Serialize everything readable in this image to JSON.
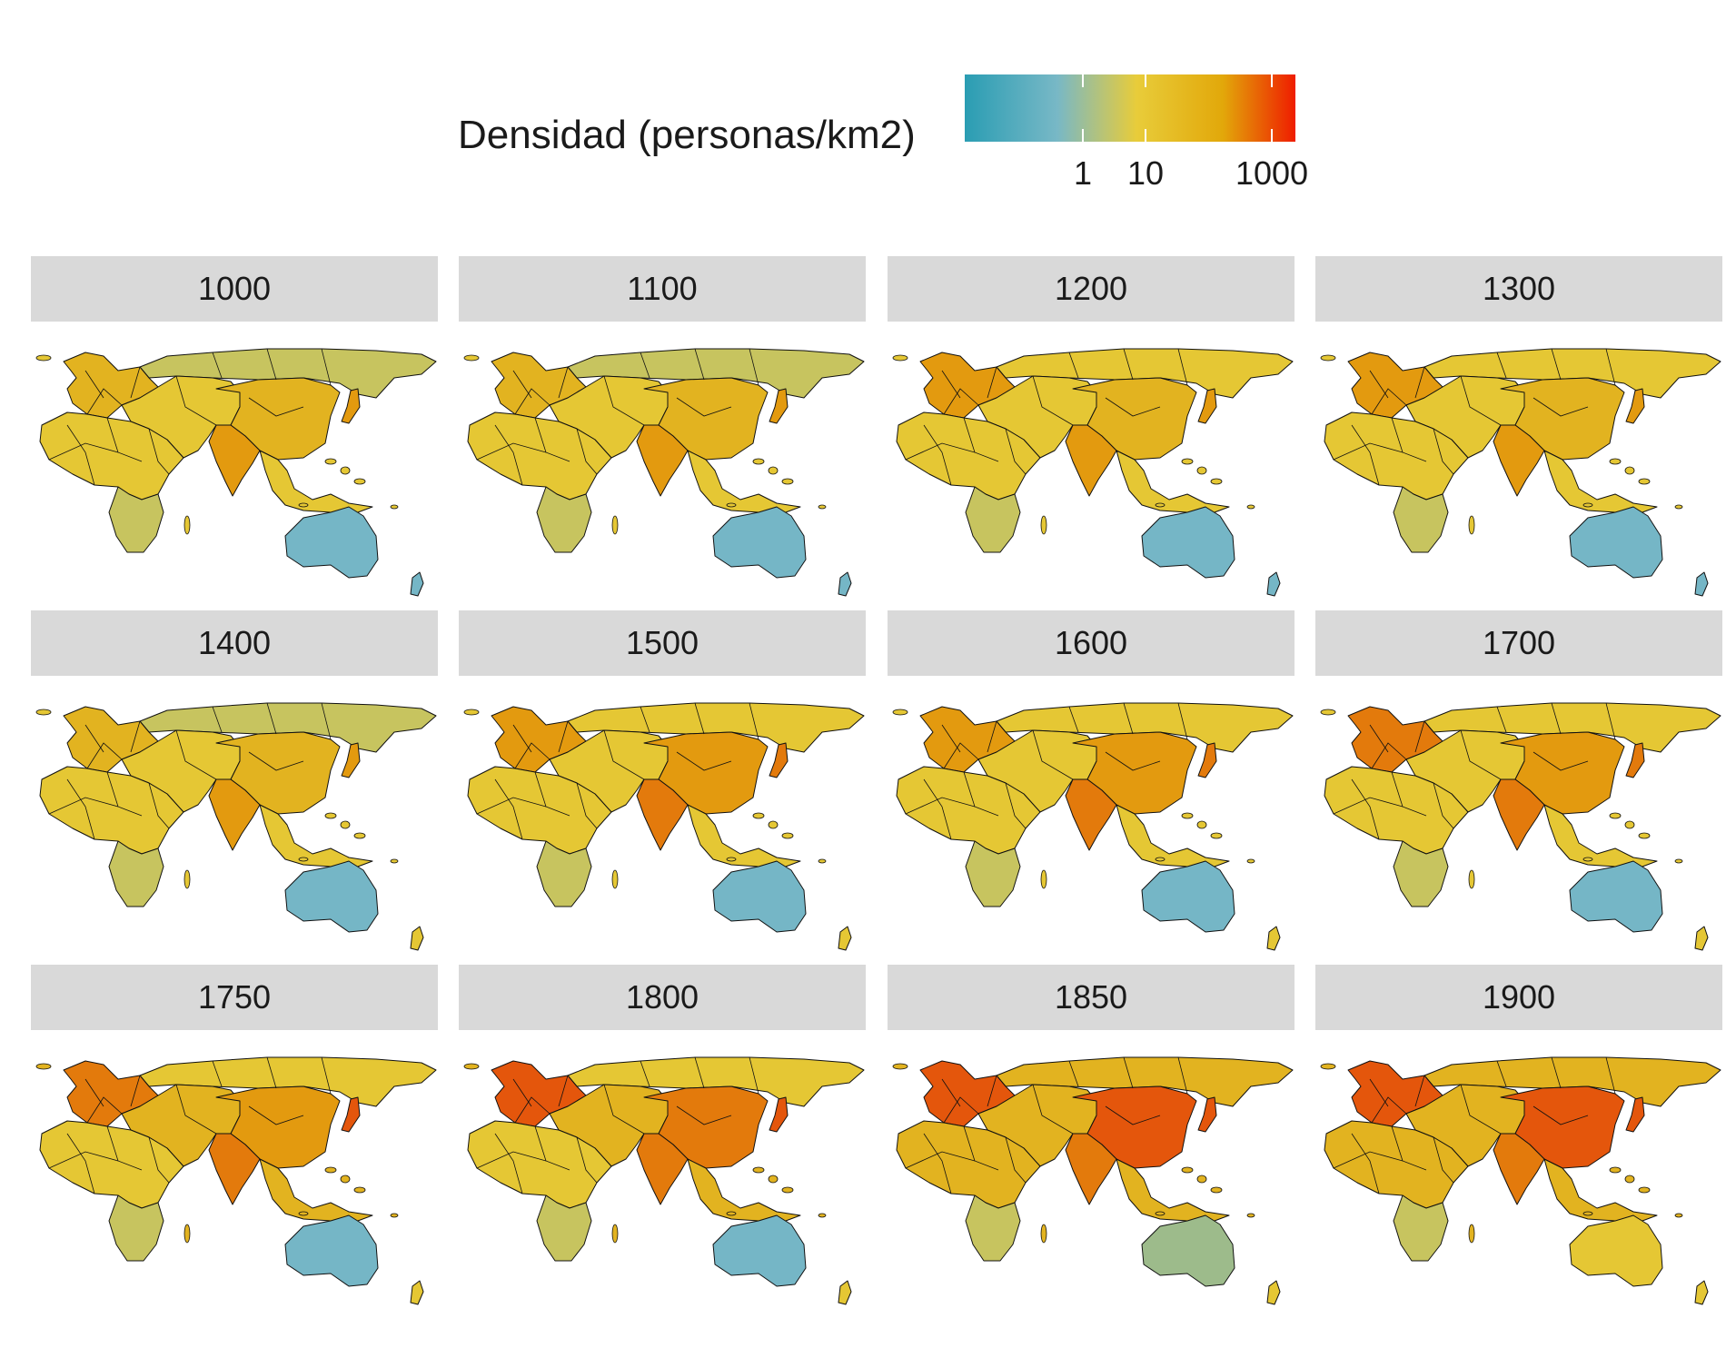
{
  "legend": {
    "title": "Densidad (personas/km2)",
    "scale": "log",
    "ticks": [
      "1",
      "10",
      "1000"
    ],
    "colors": [
      "#2a9db3",
      "#78b8c6",
      "#e8cc3a",
      "#e2a80a",
      "#ef1d00"
    ]
  },
  "map_data": {
    "type": "choropleth-facet",
    "variable": "Densidad (personas/km2)",
    "palette": {
      "blue": "#75b6c6",
      "sage": "#9dbb8b",
      "olive": "#c7c45f",
      "yellow": "#e5c734",
      "gold": "#e2b320",
      "orange": "#e39a0f",
      "darkorange": "#e37a0c",
      "red": "#e4560c"
    },
    "panels": [
      {
        "year": "1000",
        "colors": {
          "russia": "olive",
          "mid": "yellow",
          "europe": "gold",
          "africa": "yellow",
          "safrica": "olive",
          "china": "gold",
          "india": "orange",
          "japan": "orange",
          "seasia": "yellow",
          "australia": "blue",
          "nz": "blue"
        }
      },
      {
        "year": "1100",
        "colors": {
          "russia": "olive",
          "mid": "yellow",
          "europe": "gold",
          "africa": "yellow",
          "safrica": "olive",
          "china": "gold",
          "india": "orange",
          "japan": "orange",
          "seasia": "yellow",
          "australia": "blue",
          "nz": "blue"
        }
      },
      {
        "year": "1200",
        "colors": {
          "russia": "yellow",
          "mid": "yellow",
          "europe": "orange",
          "africa": "yellow",
          "safrica": "olive",
          "china": "gold",
          "india": "orange",
          "japan": "orange",
          "seasia": "yellow",
          "australia": "blue",
          "nz": "blue"
        }
      },
      {
        "year": "1300",
        "colors": {
          "russia": "yellow",
          "mid": "yellow",
          "europe": "orange",
          "africa": "yellow",
          "safrica": "olive",
          "china": "gold",
          "india": "orange",
          "japan": "orange",
          "seasia": "yellow",
          "australia": "blue",
          "nz": "blue"
        }
      },
      {
        "year": "1400",
        "colors": {
          "russia": "olive",
          "mid": "yellow",
          "europe": "gold",
          "africa": "yellow",
          "safrica": "olive",
          "china": "gold",
          "india": "orange",
          "japan": "orange",
          "seasia": "yellow",
          "australia": "blue",
          "nz": "yellow"
        }
      },
      {
        "year": "1500",
        "colors": {
          "russia": "yellow",
          "mid": "yellow",
          "europe": "orange",
          "africa": "yellow",
          "safrica": "olive",
          "china": "orange",
          "india": "darkorange",
          "japan": "darkorange",
          "seasia": "yellow",
          "australia": "blue",
          "nz": "yellow"
        }
      },
      {
        "year": "1600",
        "colors": {
          "russia": "yellow",
          "mid": "yellow",
          "europe": "orange",
          "africa": "yellow",
          "safrica": "olive",
          "china": "orange",
          "india": "darkorange",
          "japan": "darkorange",
          "seasia": "yellow",
          "australia": "blue",
          "nz": "yellow"
        }
      },
      {
        "year": "1700",
        "colors": {
          "russia": "yellow",
          "mid": "yellow",
          "europe": "darkorange",
          "africa": "yellow",
          "safrica": "olive",
          "china": "orange",
          "india": "darkorange",
          "japan": "darkorange",
          "seasia": "yellow",
          "australia": "blue",
          "nz": "yellow"
        }
      },
      {
        "year": "1750",
        "colors": {
          "russia": "yellow",
          "mid": "gold",
          "europe": "darkorange",
          "africa": "yellow",
          "safrica": "olive",
          "china": "orange",
          "india": "darkorange",
          "japan": "red",
          "seasia": "gold",
          "australia": "blue",
          "nz": "yellow"
        }
      },
      {
        "year": "1800",
        "colors": {
          "russia": "yellow",
          "mid": "gold",
          "europe": "red",
          "africa": "yellow",
          "safrica": "olive",
          "china": "darkorange",
          "india": "darkorange",
          "japan": "red",
          "seasia": "gold",
          "australia": "blue",
          "nz": "yellow"
        }
      },
      {
        "year": "1850",
        "colors": {
          "russia": "gold",
          "mid": "gold",
          "europe": "red",
          "africa": "gold",
          "safrica": "olive",
          "china": "red",
          "india": "darkorange",
          "japan": "red",
          "seasia": "gold",
          "australia": "sage",
          "nz": "yellow"
        }
      },
      {
        "year": "1900",
        "colors": {
          "russia": "gold",
          "mid": "gold",
          "europe": "red",
          "africa": "gold",
          "safrica": "olive",
          "china": "red",
          "india": "darkorange",
          "japan": "red",
          "seasia": "gold",
          "australia": "yellow",
          "nz": "yellow"
        }
      }
    ]
  }
}
